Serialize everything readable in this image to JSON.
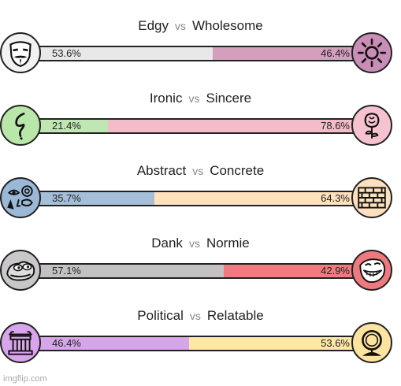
{
  "rows": [
    {
      "left_label": "Edgy",
      "vs": "vs",
      "right_label": "Wholesome",
      "left_pct": "53.6%",
      "right_pct": "46.4%",
      "left_value": 53.6,
      "left_color": "#e8e8e8",
      "right_color": "#d39fbd",
      "left_icon_bg": "#f2f2f2",
      "right_icon_bg": "#c98db7",
      "left_icon": "anonymous-mask-icon",
      "right_icon": "sun-icon"
    },
    {
      "left_label": "Ironic",
      "vs": "vs",
      "right_label": "Sincere",
      "left_pct": "21.4%",
      "right_pct": "78.6%",
      "left_value": 21.4,
      "left_color": "#bfe6b3",
      "right_color": "#f4bcc9",
      "left_icon_bg": "#b8e7a9",
      "right_icon_bg": "#f6c2cf",
      "left_icon": "squiggle-icon",
      "right_icon": "rose-icon"
    },
    {
      "left_label": "Abstract",
      "vs": "vs",
      "right_label": "Concrete",
      "left_pct": "35.7%",
      "right_pct": "64.3%",
      "left_value": 35.7,
      "left_color": "#a5bfd9",
      "right_color": "#ffe1bc",
      "left_icon_bg": "#9bb8d6",
      "right_icon_bg": "#fde0bd",
      "left_icon": "abstract-face-icon",
      "right_icon": "brick-wall-icon"
    },
    {
      "left_label": "Dank",
      "vs": "vs",
      "right_label": "Normie",
      "left_pct": "57.1%",
      "right_pct": "42.9%",
      "left_value": 57.1,
      "left_color": "#c3c1c3",
      "right_color": "#ef7b80",
      "left_icon_bg": "#c9c7c9",
      "right_icon_bg": "#ee7a7f",
      "left_icon": "pepe-frog-icon",
      "right_icon": "trollface-icon"
    },
    {
      "left_label": "Political",
      "vs": "vs",
      "right_label": "Relatable",
      "left_pct": "46.4%",
      "right_pct": "53.6%",
      "left_value": 46.4,
      "left_color": "#d6a6ea",
      "right_color": "#ffe7a5",
      "left_icon_bg": "#d8a4ec",
      "right_icon_bg": "#fde3a0",
      "left_icon": "capitol-column-icon",
      "right_icon": "mirror-icon"
    }
  ],
  "watermark": "imgflip.com"
}
